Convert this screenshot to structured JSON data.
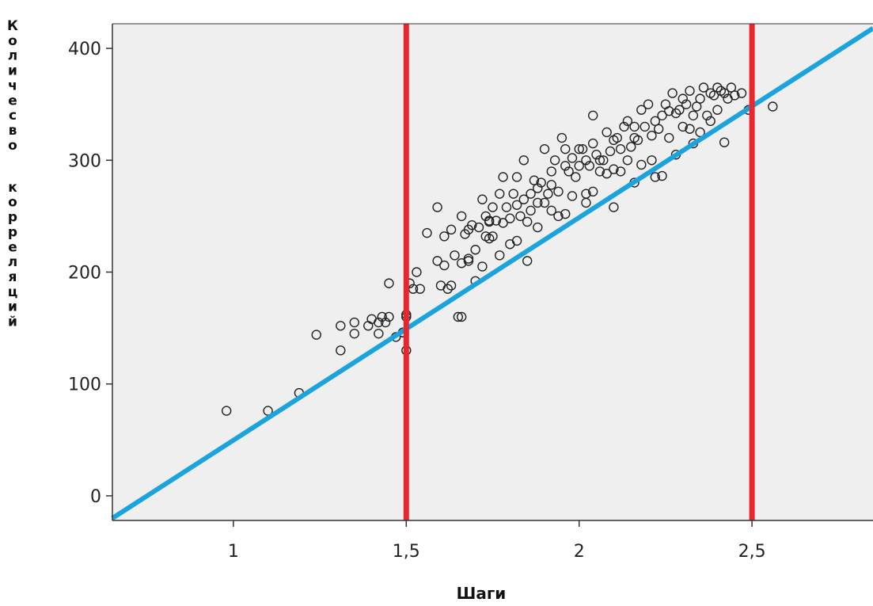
{
  "chart_data": {
    "type": "scatter",
    "title": "",
    "xlabel": "Шаги",
    "ylabel": "Количесво корреляций",
    "xlim": [
      0.65,
      2.85
    ],
    "ylim": [
      -22,
      422
    ],
    "xticks": [
      {
        "value": 1,
        "label": "1"
      },
      {
        "value": 1.5,
        "label": "1,5"
      },
      {
        "value": 2,
        "label": "2"
      },
      {
        "value": 2.5,
        "label": "2,5"
      }
    ],
    "yticks": [
      {
        "value": 0,
        "label": "0"
      },
      {
        "value": 100,
        "label": "100"
      },
      {
        "value": 200,
        "label": "200"
      },
      {
        "value": 300,
        "label": "300"
      },
      {
        "value": 400,
        "label": "400"
      }
    ],
    "grid": false,
    "plot_background": "#efefef",
    "marker_color": "#222222",
    "vertical_lines": [
      {
        "x": 1.5,
        "color": "#e8262e"
      },
      {
        "x": 2.5,
        "color": "#e8262e"
      }
    ],
    "fit_line": {
      "x": [
        0.65,
        2.85
      ],
      "y": [
        -20,
        418
      ],
      "color": "#1aa3dc"
    },
    "points": {
      "x": [
        0.98,
        1.1,
        1.19,
        1.24,
        1.31,
        1.31,
        1.35,
        1.35,
        1.39,
        1.4,
        1.42,
        1.42,
        1.43,
        1.44,
        1.45,
        1.45,
        1.47,
        1.49,
        1.5,
        1.5,
        1.51,
        1.52,
        1.53,
        1.54,
        1.59,
        1.59,
        1.6,
        1.61,
        1.61,
        1.62,
        1.63,
        1.64,
        1.65,
        1.66,
        1.67,
        1.68,
        1.68,
        1.69,
        1.7,
        1.7,
        1.71,
        1.72,
        1.73,
        1.73,
        1.74,
        1.75,
        1.75,
        1.76,
        1.77,
        1.77,
        1.78,
        1.79,
        1.8,
        1.81,
        1.82,
        1.82,
        1.83,
        1.84,
        1.85,
        1.85,
        1.86,
        1.87,
        1.88,
        1.88,
        1.89,
        1.9,
        1.91,
        1.92,
        1.92,
        1.93,
        1.94,
        1.95,
        1.96,
        1.96,
        1.97,
        1.98,
        1.99,
        2.0,
        2.0,
        2.01,
        2.02,
        2.03,
        2.04,
        2.04,
        2.05,
        2.06,
        2.07,
        2.08,
        2.09,
        2.1,
        2.1,
        2.11,
        2.12,
        2.13,
        2.14,
        2.15,
        2.16,
        2.17,
        2.18,
        2.19,
        2.2,
        2.21,
        2.22,
        2.23,
        2.24,
        2.25,
        2.26,
        2.27,
        2.28,
        2.29,
        2.3,
        2.31,
        2.32,
        2.33,
        2.34,
        2.35,
        2.36,
        2.37,
        2.38,
        2.39,
        2.4,
        2.41,
        2.42,
        2.43,
        2.44,
        2.45,
        2.47,
        2.49,
        2.56,
        1.56,
        1.63,
        1.66,
        1.72,
        1.78,
        1.84,
        1.9,
        1.94,
        2.02,
        2.06,
        2.12,
        2.16,
        2.21,
        2.26,
        2.3,
        2.35,
        1.68,
        1.74,
        1.8,
        1.86,
        1.92,
        1.98,
        2.04,
        2.08,
        2.14,
        2.18,
        2.24,
        2.28,
        2.33,
        2.38,
        2.42,
        1.5,
        1.66,
        1.74,
        1.82,
        1.88,
        1.96,
        2.02,
        2.1,
        2.16,
        2.22,
        2.32,
        2.4
      ],
      "y": [
        76,
        76,
        92,
        144,
        130,
        152,
        145,
        155,
        152,
        158,
        145,
        155,
        160,
        155,
        190,
        160,
        142,
        146,
        130,
        162,
        190,
        185,
        200,
        185,
        210,
        258,
        188,
        232,
        206,
        185,
        188,
        215,
        160,
        208,
        234,
        212,
        238,
        242,
        192,
        220,
        240,
        205,
        250,
        232,
        246,
        232,
        258,
        246,
        270,
        215,
        244,
        258,
        248,
        270,
        260,
        285,
        250,
        265,
        245,
        210,
        270,
        282,
        262,
        275,
        280,
        262,
        270,
        290,
        255,
        300,
        272,
        320,
        310,
        295,
        290,
        302,
        285,
        310,
        295,
        310,
        300,
        295,
        315,
        340,
        305,
        290,
        300,
        325,
        308,
        318,
        292,
        320,
        310,
        330,
        335,
        312,
        320,
        318,
        345,
        330,
        350,
        322,
        335,
        328,
        340,
        350,
        344,
        360,
        342,
        345,
        355,
        350,
        362,
        340,
        348,
        355,
        365,
        340,
        360,
        358,
        365,
        362,
        360,
        355,
        365,
        358,
        360,
        345,
        348,
        235,
        238,
        250,
        265,
        285,
        300,
        310,
        250,
        270,
        300,
        290,
        330,
        300,
        320,
        330,
        325,
        210,
        245,
        225,
        255,
        278,
        268,
        272,
        288,
        300,
        296,
        286,
        305,
        315,
        335,
        316,
        160,
        160,
        230,
        228,
        240,
        252,
        262,
        258,
        280,
        285,
        328,
        345
      ]
    }
  }
}
